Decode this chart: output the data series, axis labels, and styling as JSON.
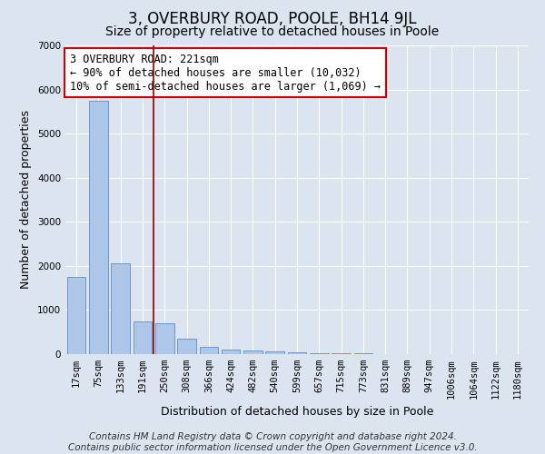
{
  "title": "3, OVERBURY ROAD, POOLE, BH14 9JL",
  "subtitle": "Size of property relative to detached houses in Poole",
  "xlabel": "Distribution of detached houses by size in Poole",
  "ylabel": "Number of detached properties",
  "footer_line1": "Contains HM Land Registry data © Crown copyright and database right 2024.",
  "footer_line2": "Contains public sector information licensed under the Open Government Licence v3.0.",
  "categories": [
    "17sqm",
    "75sqm",
    "133sqm",
    "191sqm",
    "250sqm",
    "308sqm",
    "366sqm",
    "424sqm",
    "482sqm",
    "540sqm",
    "599sqm",
    "657sqm",
    "715sqm",
    "773sqm",
    "831sqm",
    "889sqm",
    "947sqm",
    "1006sqm",
    "1064sqm",
    "1122sqm",
    "1180sqm"
  ],
  "values": [
    1750,
    5750,
    2050,
    750,
    700,
    350,
    175,
    105,
    75,
    60,
    40,
    30,
    20,
    15,
    10,
    8,
    5,
    4,
    3,
    2,
    2
  ],
  "bar_color": "#aec6e8",
  "bar_edge_color": "#5a8fc4",
  "vline_x": 3.5,
  "vline_color": "#8b0000",
  "annotation_text": "3 OVERBURY ROAD: 221sqm\n← 90% of detached houses are smaller (10,032)\n10% of semi-detached houses are larger (1,069) →",
  "annotation_box_color": "white",
  "annotation_box_edge": "#cc0000",
  "ylim": [
    0,
    7000
  ],
  "yticks": [
    0,
    1000,
    2000,
    3000,
    4000,
    5000,
    6000,
    7000
  ],
  "background_color": "#dce4ef",
  "plot_background": "#dce4ef",
  "grid_color": "white",
  "title_fontsize": 12,
  "subtitle_fontsize": 10,
  "axis_label_fontsize": 9,
  "tick_fontsize": 7.5,
  "annotation_fontsize": 8.5,
  "footer_fontsize": 7.5
}
